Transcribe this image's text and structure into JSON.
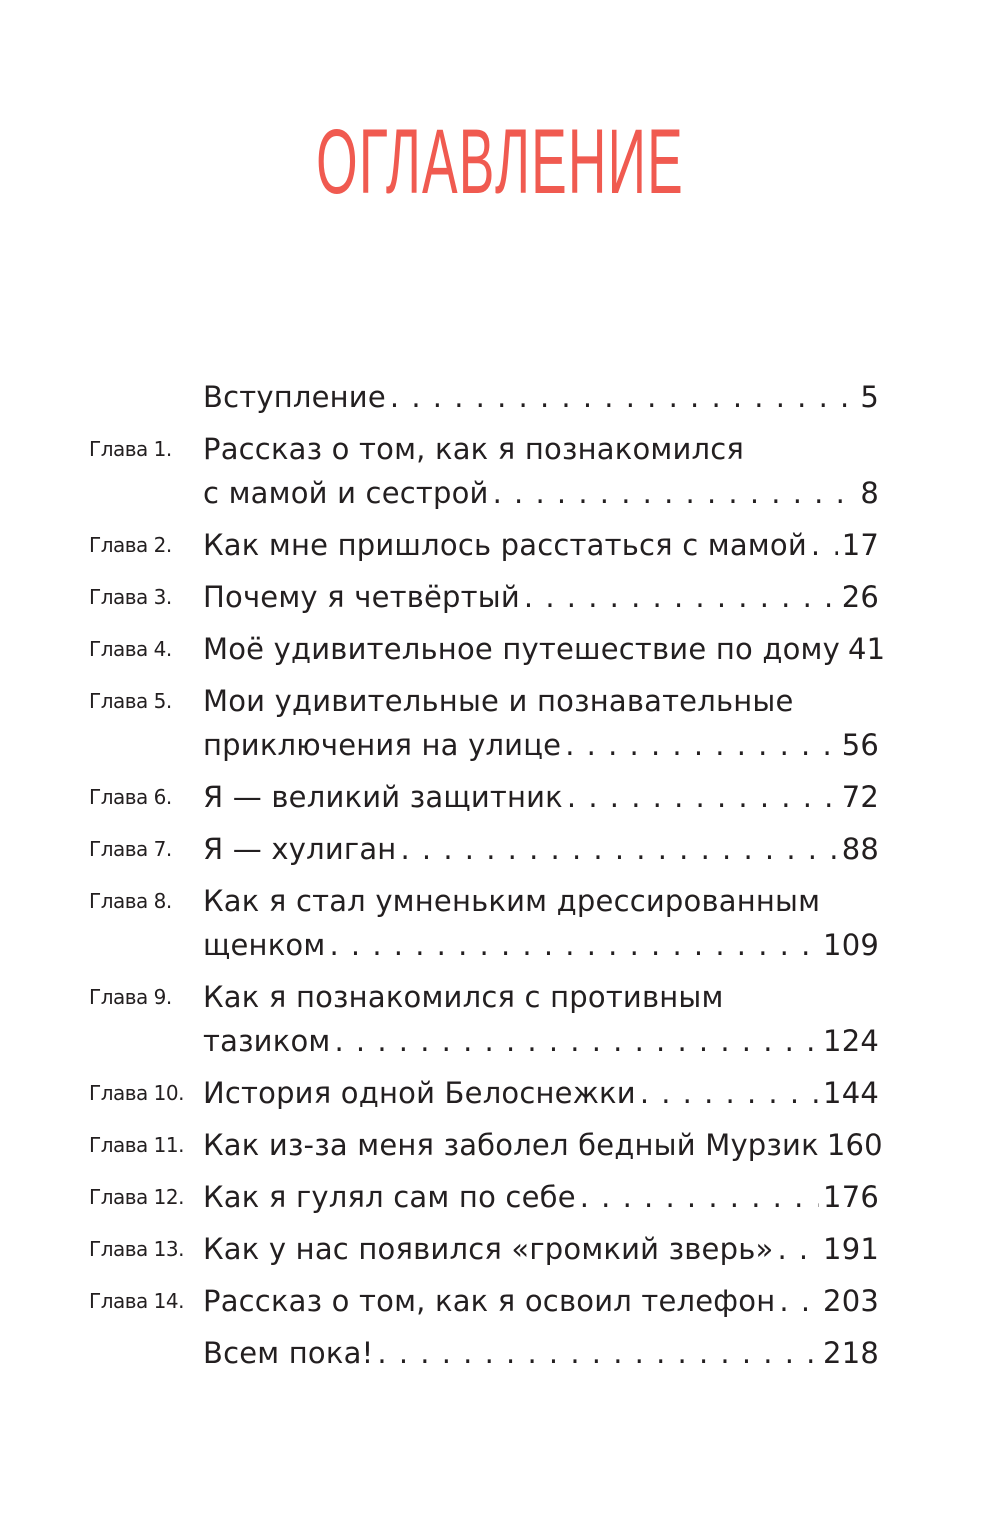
{
  "heading": "ОГЛАВЛЕНИЕ",
  "colors": {
    "heading": "#f05a50",
    "text": "#231f20"
  },
  "entries": [
    {
      "label": "",
      "lines": [
        "Вступление"
      ],
      "page": "5"
    },
    {
      "label": "Глава 1.",
      "lines": [
        "Рассказ о том, как я познакомился",
        "с мамой и сестрой"
      ],
      "page": "8"
    },
    {
      "label": "Глава 2.",
      "lines": [
        "Как мне пришлось расстаться с мамой"
      ],
      "page": "17"
    },
    {
      "label": "Глава 3.",
      "lines": [
        "Почему я четвёртый"
      ],
      "page": "26"
    },
    {
      "label": "Глава 4.",
      "lines": [
        "Моё удивительное путешествие по дому"
      ],
      "page": "41"
    },
    {
      "label": "Глава 5.",
      "lines": [
        "Мои удивительные и познавательные",
        "приключения на улице"
      ],
      "page": "56"
    },
    {
      "label": "Глава 6.",
      "lines": [
        "Я — великий защитник"
      ],
      "page": "72"
    },
    {
      "label": "Глава 7.",
      "lines": [
        "Я — хулиган"
      ],
      "page": "88"
    },
    {
      "label": "Глава 8.",
      "lines": [
        "Как я стал умненьким дрессированным",
        "щенком"
      ],
      "page": "109"
    },
    {
      "label": "Глава 9.",
      "lines": [
        "Как я познакомился с противным",
        "тазиком"
      ],
      "page": "124"
    },
    {
      "label": "Глава 10.",
      "lines": [
        "История одной Белоснежки"
      ],
      "page": "144"
    },
    {
      "label": "Глава 11.",
      "lines": [
        "Как из-за меня заболел бедный Мурзик"
      ],
      "page": "160"
    },
    {
      "label": "Глава 12.",
      "lines": [
        "Как я гулял сам по себе"
      ],
      "page": "176"
    },
    {
      "label": "Глава 13.",
      "lines": [
        "Как у нас появился «громкий зверь»"
      ],
      "page": "191"
    },
    {
      "label": "Глава 14.",
      "lines": [
        "Рассказ о том, как я освоил телефон"
      ],
      "page": "203"
    },
    {
      "label": "",
      "lines": [
        "Всем пока!"
      ],
      "page": "218"
    }
  ]
}
